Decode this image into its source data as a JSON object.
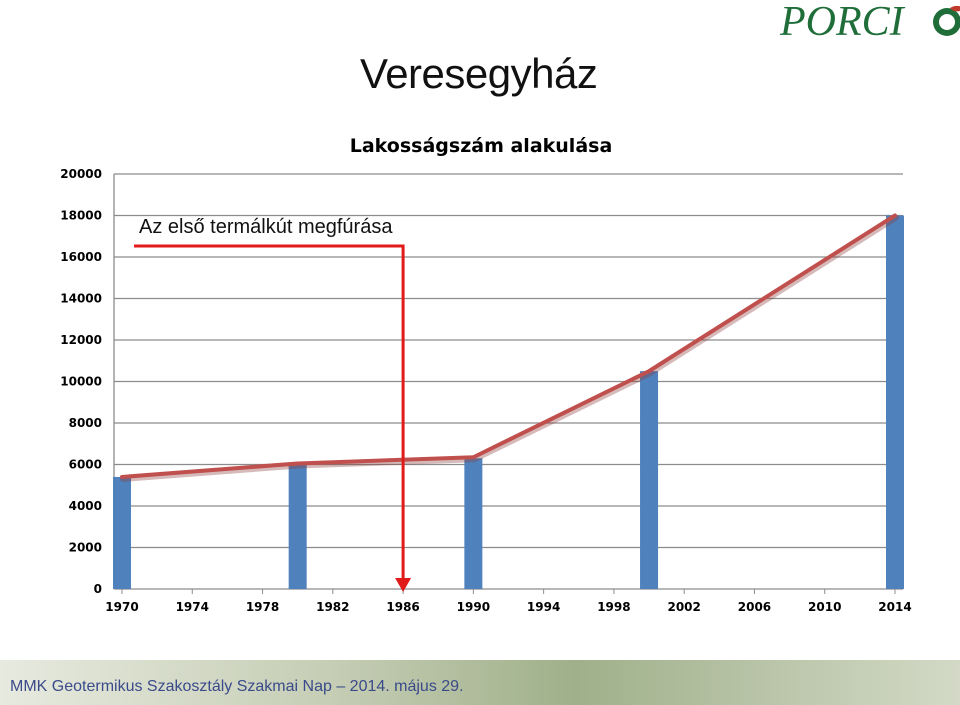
{
  "slide": {
    "title": "Veresegyház",
    "logo_text": "PORCI",
    "annotation": "Az első termálkút megfúrása",
    "footer": "MMK Geotermikus Szakosztály Szakmai Nap – 2014. május 29."
  },
  "colors": {
    "bar": "#4f81bd",
    "line": "#c0504d",
    "arrow": "#e11a1a",
    "logo_green": "#1f6e3a",
    "logo_red": "#c0392b",
    "footer_text": "#3a4a8a"
  },
  "chart_data": {
    "type": "bar",
    "title": "Lakosságszám alakulása",
    "xlabel": "",
    "ylabel": "",
    "xlim": [
      1970,
      2014
    ],
    "ylim": [
      0,
      20000
    ],
    "x_ticks": [
      1970,
      1974,
      1978,
      1982,
      1986,
      1990,
      1994,
      1998,
      2002,
      2006,
      2010,
      2014
    ],
    "y_ticks": [
      0,
      2000,
      4000,
      6000,
      8000,
      10000,
      12000,
      14000,
      16000,
      18000,
      20000
    ],
    "grid": true,
    "series": [
      {
        "type": "bar",
        "x": [
          1970,
          1980,
          1990,
          2000,
          2014
        ],
        "values": [
          5400,
          6000,
          6300,
          10500,
          18000
        ]
      },
      {
        "type": "line",
        "x": [
          1970,
          1980,
          1990,
          2000,
          2014
        ],
        "values": [
          5400,
          6050,
          6350,
          10500,
          18000
        ]
      }
    ],
    "annotation": {
      "x": 1986,
      "label": "Az első termálkút megfúrása"
    }
  }
}
